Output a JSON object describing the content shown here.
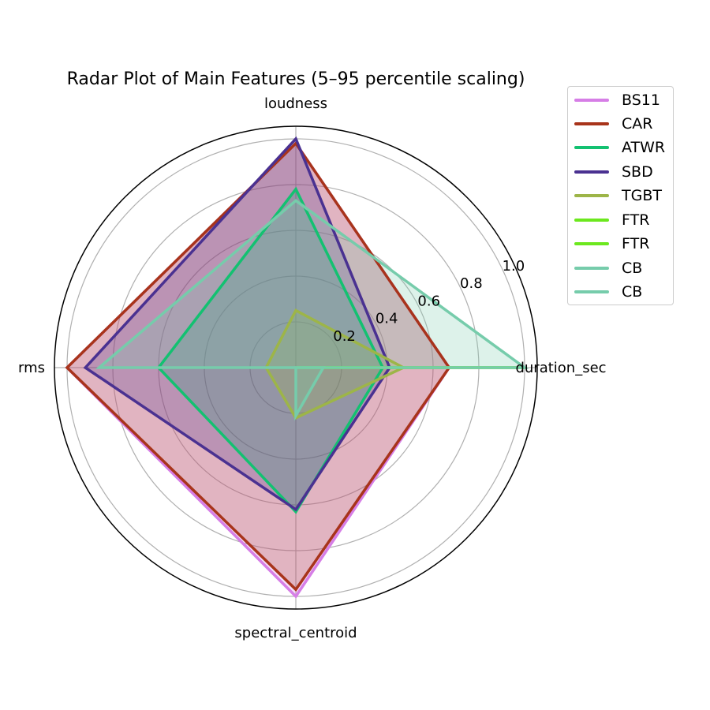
{
  "chart_data": {
    "type": "radar",
    "title": "Radar Plot of Main Features (5–95 percentile scaling)",
    "axes": [
      "duration_sec",
      "loudness",
      "rms",
      "spectral_centroid"
    ],
    "radial_ticks": [
      "0.2",
      "0.4",
      "0.6",
      "0.8",
      "1.0"
    ],
    "rlim": [
      0,
      1.05
    ],
    "grid": true,
    "legend_position": "upper right, outside",
    "series": [
      {
        "name": "BS11",
        "color": "#d67ee6",
        "values": [
          0.67,
          0.98,
          1.0,
          1.0
        ]
      },
      {
        "name": "CAR",
        "color": "#a8341b",
        "values": [
          0.67,
          0.98,
          1.0,
          0.97
        ]
      },
      {
        "name": "ATWR",
        "color": "#13c171",
        "values": [
          0.38,
          0.78,
          0.6,
          0.63
        ]
      },
      {
        "name": "SBD",
        "color": "#4a3191",
        "values": [
          0.41,
          1.0,
          0.92,
          0.62
        ]
      },
      {
        "name": "TGBT",
        "color": "#9db548",
        "values": [
          0.47,
          0.25,
          0.13,
          0.22
        ]
      },
      {
        "name": "FTR",
        "color": "#6ce81e",
        "values": [
          1.0,
          0.0,
          0.0,
          0.0
        ]
      },
      {
        "name": "FTR",
        "color": "#6ce81e",
        "values": [
          1.0,
          0.0,
          0.0,
          0.0
        ]
      },
      {
        "name": "CB",
        "color": "#76ccab",
        "values": [
          1.0,
          0.73,
          0.86,
          0.0
        ]
      },
      {
        "name": "CB",
        "color": "#76ccab",
        "values": [
          0.12,
          0.0,
          0.0,
          0.21
        ]
      }
    ]
  },
  "legend": {
    "items": [
      {
        "label": "BS11",
        "color": "#d67ee6"
      },
      {
        "label": "CAR",
        "color": "#a8341b"
      },
      {
        "label": "ATWR",
        "color": "#13c171"
      },
      {
        "label": "SBD",
        "color": "#4a3191"
      },
      {
        "label": "TGBT",
        "color": "#9db548"
      },
      {
        "label": "FTR",
        "color": "#6ce81e"
      },
      {
        "label": "FTR",
        "color": "#6ce81e"
      },
      {
        "label": "CB",
        "color": "#76ccab"
      },
      {
        "label": "CB",
        "color": "#76ccab"
      }
    ]
  }
}
